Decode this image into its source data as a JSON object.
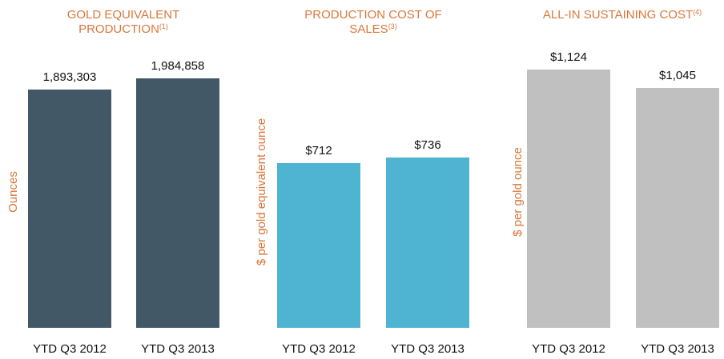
{
  "chart_data": [
    {
      "type": "bar",
      "title": "GOLD EQUIVALENT PRODUCTION",
      "title_superscript": "(1)",
      "ylabel": "Ounces",
      "categories": [
        "YTD Q3 2012",
        "YTD Q3 2013"
      ],
      "values": [
        1893303,
        1984858
      ],
      "value_labels": [
        "1,893,303",
        "1,984,858"
      ],
      "color": "#435866"
    },
    {
      "type": "bar",
      "title": "PRODUCTION COST OF SALES",
      "title_superscript": "(3)",
      "ylabel": "$ per gold equivalent ounce",
      "categories": [
        "YTD Q3 2012",
        "YTD Q3 2013"
      ],
      "values": [
        712,
        736
      ],
      "value_labels": [
        "$712",
        "$736"
      ],
      "color": "#4fb3d2"
    },
    {
      "type": "bar",
      "title": "ALL-IN SUSTAINING COST",
      "title_superscript": "(4)",
      "ylabel": "$ per gold ounce",
      "categories": [
        "YTD Q3 2012",
        "YTD Q3 2013"
      ],
      "values": [
        1124,
        1045
      ],
      "value_labels": [
        "$1,124",
        "$1,045"
      ],
      "color": "#c0c0c0"
    }
  ]
}
